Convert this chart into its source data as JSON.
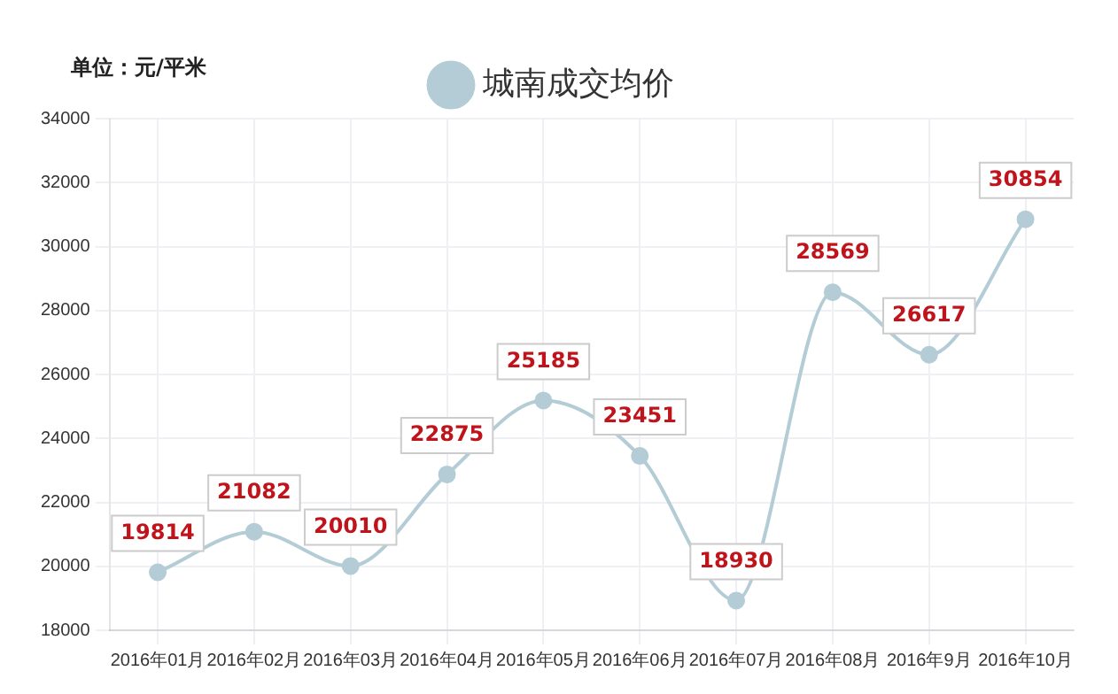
{
  "chart_data": {
    "type": "line",
    "annotations": [
      "单位：元/平米"
    ],
    "categories": [
      "2016年01月",
      "2016年02月",
      "2016年03月",
      "2016年04月",
      "2016年05月",
      "2016年06月",
      "2016年07月",
      "2016年08月",
      "2016年9月",
      "2016年10月"
    ],
    "series": [
      {
        "name": "城南成交均价",
        "color": "#b3ccd6",
        "values": [
          19814,
          21082,
          20010,
          22875,
          25185,
          23451,
          18930,
          28569,
          26617,
          30854
        ]
      }
    ],
    "ylim": [
      18000,
      34000
    ],
    "yticks": [
      18000,
      20000,
      22000,
      24000,
      26000,
      28000,
      30000,
      32000,
      34000
    ],
    "grid": true,
    "legend": "top",
    "marker": "circle",
    "line_style": "solid",
    "data_labels": true
  }
}
